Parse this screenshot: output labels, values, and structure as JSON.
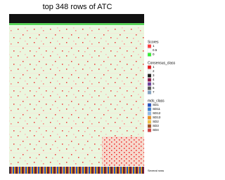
{
  "chart_data": {
    "type": "heatmap",
    "title": "top 348 rows of ATC",
    "legends": [
      {
        "title": "Scores",
        "entries": [
          {
            "label": "1",
            "color": "#ff3b3b"
          },
          {
            "label": "0.5",
            "color": "#ffffff"
          },
          {
            "label": "0",
            "color": "#33ee33"
          }
        ]
      },
      {
        "title": "Consensus_class",
        "entries": [
          {
            "label": "1",
            "color": "#e41a1c"
          },
          {
            "label": "2",
            "color": "#f4f4f4"
          },
          {
            "label": "3",
            "color": "#1a1a1a"
          },
          {
            "label": "4",
            "color": "#8b1a4a"
          },
          {
            "label": "5",
            "color": "#6a3d9a"
          },
          {
            "label": "6",
            "color": "#555555"
          },
          {
            "label": "7",
            "color": "#7f9fbf"
          }
        ]
      },
      {
        "title": "mds_class",
        "entries": [
          {
            "label": "SD1",
            "color": "#1f4fbf"
          },
          {
            "label": "SD11",
            "color": "#3a7fd0"
          },
          {
            "label": "SD12",
            "color": "#8fb8e8"
          },
          {
            "label": "SD13",
            "color": "#e89020"
          },
          {
            "label": "SD2",
            "color": "#f0c040"
          },
          {
            "label": "SD3",
            "color": "#a05020"
          },
          {
            "label": "SD4",
            "color": "#d04040"
          }
        ]
      }
    ],
    "footnote": "Several rows"
  }
}
